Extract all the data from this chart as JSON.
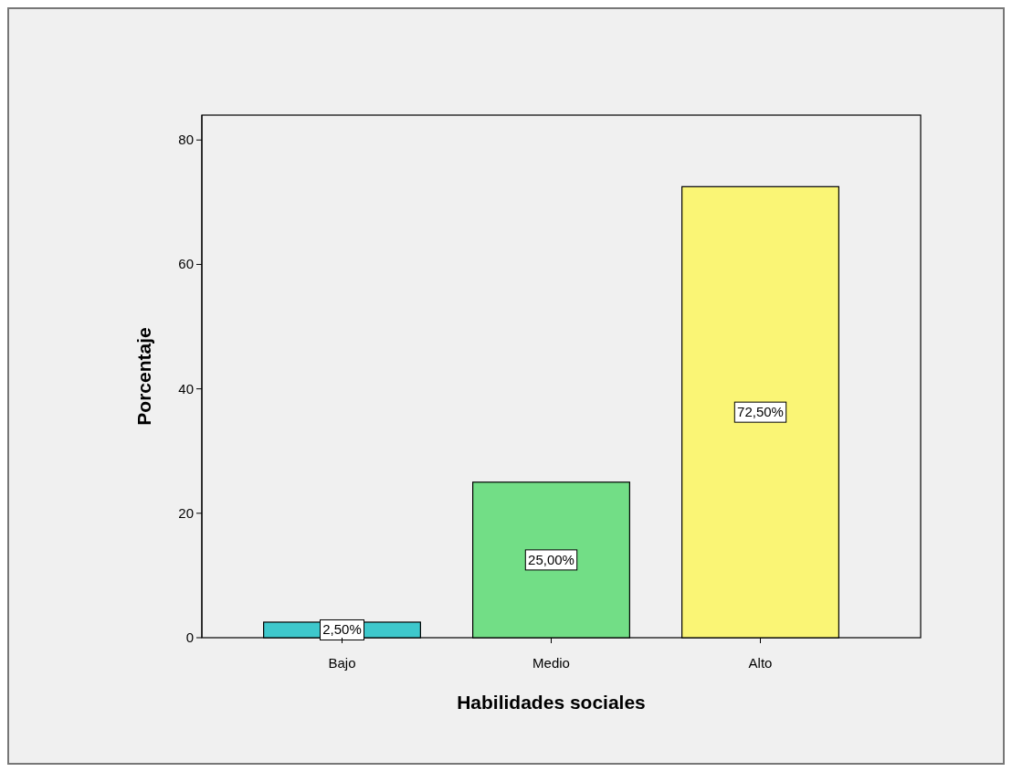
{
  "chart_data": {
    "type": "bar",
    "xlabel": "Habilidades sociales",
    "ylabel": "Porcentaje",
    "categories": [
      "Bajo",
      "Medio",
      "Alto"
    ],
    "values": [
      2.5,
      25,
      72.5
    ],
    "colors": [
      "#3ec8cc",
      "#72de86",
      "#faf575"
    ],
    "value_labels": [
      "2,50%",
      "25,00%",
      "72,50%"
    ],
    "ylim": [
      0,
      84
    ],
    "yticks": [
      0,
      20,
      40,
      60,
      80
    ],
    "grid": false
  }
}
